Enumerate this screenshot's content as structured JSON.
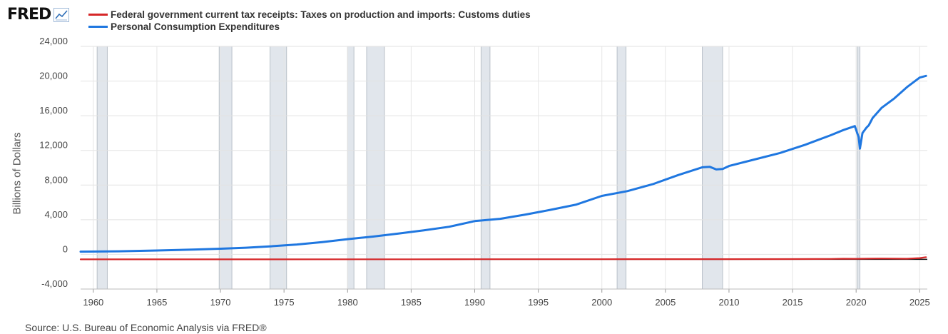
{
  "logo": {
    "text": "FRED",
    "icon": "chart-line-icon"
  },
  "legend": [
    {
      "label": "Federal government current tax receipts: Taxes on production and imports: Customs duties",
      "color": "#d62728"
    },
    {
      "label": "Personal Consumption Expenditures",
      "color": "#1f77e0"
    }
  ],
  "source": "Source: U.S. Bureau of Economic Analysis via FRED®",
  "chart_data": {
    "type": "line",
    "title": "",
    "xlabel": "",
    "ylabel": "Billions of Dollars",
    "xlim": [
      1959,
      2025.6
    ],
    "ylim": [
      -4000,
      24000
    ],
    "y_ticks": [
      -4000,
      0,
      4000,
      8000,
      12000,
      16000,
      20000,
      24000
    ],
    "y_tick_labels": [
      "-4,000",
      "0",
      "4,000",
      "8,000",
      "12,000",
      "16,000",
      "20,000",
      "24,000"
    ],
    "x_ticks": [
      1960,
      1965,
      1970,
      1975,
      1980,
      1985,
      1990,
      1995,
      2000,
      2005,
      2010,
      2015,
      2020,
      2025
    ],
    "x_tick_labels": [
      "1960",
      "1965",
      "1970",
      "1975",
      "1980",
      "1985",
      "1990",
      "1995",
      "2000",
      "2005",
      "2010",
      "2015",
      "2020",
      "2025"
    ],
    "grid": true,
    "recessions": [
      [
        1960.3,
        1961.1
      ],
      [
        1969.9,
        1970.9
      ],
      [
        1973.9,
        1975.2
      ],
      [
        1980.0,
        1980.5
      ],
      [
        1981.5,
        1982.9
      ],
      [
        1990.5,
        1991.2
      ],
      [
        2001.2,
        2001.9
      ],
      [
        2007.9,
        2009.5
      ],
      [
        2020.1,
        2020.3
      ]
    ],
    "series": [
      {
        "name": "Federal government current tax receipts: Taxes on production and imports: Customs duties",
        "color": "#d62728",
        "x": [
          1959,
          1965,
          1970,
          1975,
          1980,
          1985,
          1990,
          1995,
          2000,
          2005,
          2010,
          2015,
          2018,
          2019,
          2020,
          2021,
          2022,
          2023,
          2024,
          2025,
          2025.5
        ],
        "values": [
          1,
          1.5,
          2.5,
          4,
          7,
          12,
          17,
          19,
          20,
          25,
          26,
          35,
          55,
          78,
          70,
          85,
          100,
          85,
          80,
          150,
          250
        ]
      },
      {
        "name": "Personal Consumption Expenditures",
        "color": "#1f77e0",
        "x": [
          1959,
          1962,
          1965,
          1968,
          1970,
          1972,
          1974,
          1976,
          1978,
          1980,
          1982,
          1984,
          1986,
          1988,
          1990,
          1992,
          1994,
          1996,
          1998,
          2000,
          2002,
          2004,
          2006,
          2007.9,
          2008.5,
          2009.0,
          2009.5,
          2010,
          2012,
          2014,
          2016,
          2018,
          2019,
          2019.9,
          2020.2,
          2020.3,
          2020.5,
          2020.8,
          2021,
          2021.3,
          2022,
          2023,
          2024,
          2025,
          2025.5
        ],
        "values": [
          315,
          360,
          450,
          560,
          650,
          770,
          930,
          1140,
          1420,
          1760,
          2050,
          2400,
          2770,
          3190,
          3840,
          4100,
          4600,
          5150,
          5750,
          6750,
          7300,
          8100,
          9150,
          10050,
          10100,
          9800,
          9850,
          10200,
          10950,
          11700,
          12650,
          13750,
          14350,
          14800,
          13500,
          12200,
          14000,
          14600,
          14900,
          15750,
          16900,
          18000,
          19300,
          20400,
          20600
        ]
      }
    ]
  }
}
